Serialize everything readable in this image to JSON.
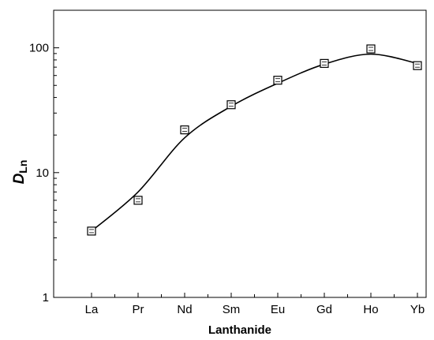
{
  "chart_data": {
    "type": "scatter",
    "title": "",
    "xlabel": "Lanthanide",
    "ylabel_main": "D",
    "ylabel_sub": "Ln",
    "y_scale": "log",
    "ylim": [
      1,
      200
    ],
    "y_ticks": [
      1,
      10,
      100
    ],
    "y_tick_labels": [
      "1",
      "10",
      "100"
    ],
    "categories": [
      "La",
      "Pr",
      "Nd",
      "Sm",
      "Eu",
      "Gd",
      "Ho",
      "Yb"
    ],
    "values": [
      3.4,
      6.0,
      22,
      35,
      55,
      75,
      98,
      72
    ],
    "fit_curve": {
      "categories": [
        "La",
        "Pr",
        "Nd",
        "Sm",
        "Eu",
        "Gd",
        "Ho",
        "Yb"
      ],
      "values": [
        3.4,
        7,
        19,
        34,
        52,
        74,
        89,
        75
      ]
    },
    "marker": "open-square",
    "grid": false,
    "legend": "none"
  }
}
